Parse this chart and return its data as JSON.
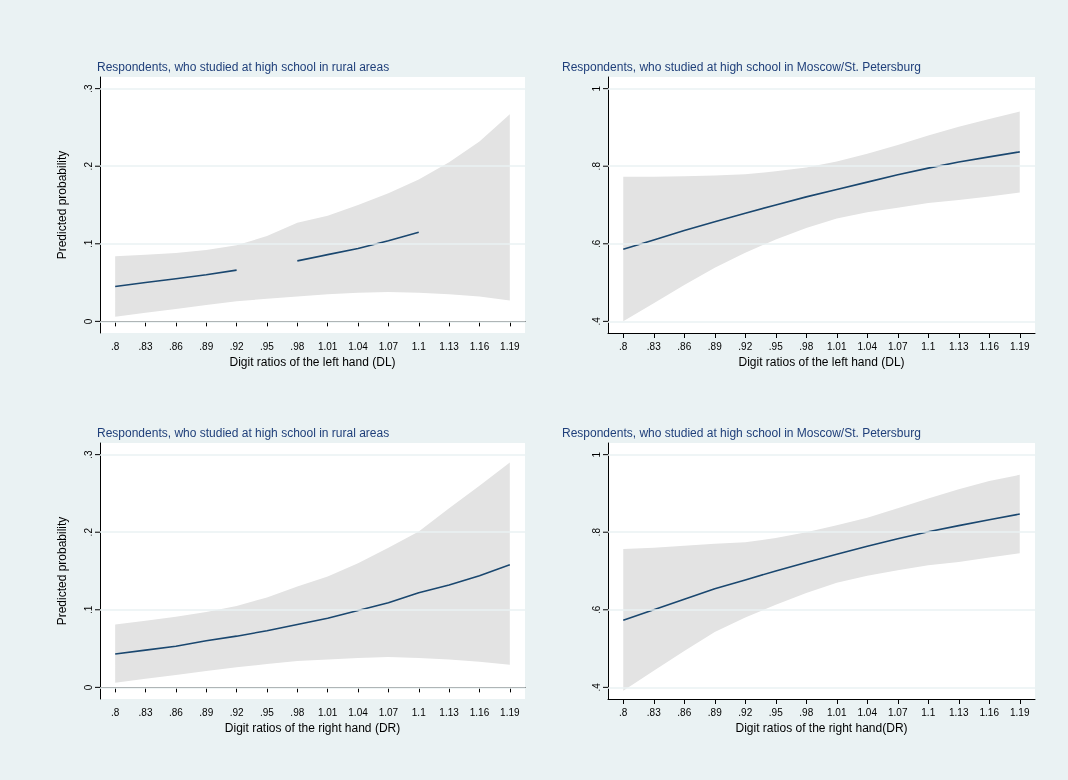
{
  "chart_data": [
    {
      "type": "line",
      "title": "Respondents, who studied at high school in rural areas",
      "xlabel": "Digit ratios of the left hand (DL)",
      "ylabel": "Predicted probability",
      "grid": "y",
      "categories": [
        ".8",
        ".83",
        ".86",
        ".89",
        ".92",
        ".95",
        ".98",
        "1.01",
        "1.04",
        "1.07",
        "1.1",
        "1.13",
        "1.16",
        "1.19"
      ],
      "ylim": [
        -0.015,
        0.315
      ],
      "yticks": [
        {
          "value": 0,
          "label": "0"
        },
        {
          "value": 0.1,
          "label": ".1"
        },
        {
          "value": 0.2,
          "label": ".2"
        },
        {
          "value": 0.3,
          "label": ".3"
        }
      ],
      "series": [
        {
          "color": "#1a476f",
          "values": [
            0.045,
            0.05,
            0.055,
            0.06,
            0.066,
            null,
            0.078,
            0.086,
            0.094,
            0.104,
            0.115,
            null,
            null,
            null
          ],
          "lower": [
            0.006,
            0.011,
            0.016,
            0.021,
            0.026,
            0.029,
            0.032,
            0.035,
            0.037,
            0.038,
            0.037,
            0.035,
            0.032,
            0.027
          ],
          "upper": [
            0.084,
            0.086,
            0.088,
            0.092,
            0.098,
            0.11,
            0.127,
            0.136,
            0.15,
            0.165,
            0.183,
            0.205,
            0.232,
            0.267
          ]
        }
      ]
    },
    {
      "type": "line",
      "title": "Respondents, who studied at high school in Moscow/St. Petersburg",
      "xlabel": "Digit ratios of the left hand (DL)",
      "grid": "y",
      "categories": [
        ".8",
        ".83",
        ".86",
        ".89",
        ".92",
        ".95",
        ".98",
        "1.01",
        "1.04",
        "1.07",
        "1.1",
        "1.13",
        "1.16",
        "1.19"
      ],
      "ylim": [
        0.37,
        1.03
      ],
      "yticks": [
        {
          "value": 0.4,
          "label": ".4"
        },
        {
          "value": 0.6,
          "label": ".6"
        },
        {
          "value": 0.8,
          "label": ".8"
        },
        1
      ],
      "series": [
        {
          "color": "#1a476f",
          "values": [
            0.586,
            0.61,
            0.634,
            0.657,
            0.679,
            0.7,
            0.721,
            0.74,
            0.759,
            0.778,
            0.795,
            0.811,
            0.824,
            0.837
          ],
          "lower": [
            0.4,
            0.447,
            0.494,
            0.538,
            0.577,
            0.611,
            0.641,
            0.665,
            0.681,
            0.693,
            0.705,
            0.713,
            0.722,
            0.732
          ],
          "upper": [
            0.773,
            0.773,
            0.774,
            0.776,
            0.779,
            0.787,
            0.797,
            0.812,
            0.832,
            0.855,
            0.879,
            0.902,
            0.922,
            0.941
          ]
        }
      ]
    },
    {
      "type": "line",
      "title": "Respondents, who studied at high school in rural areas",
      "xlabel": "Digit ratios of the right hand (DR)",
      "ylabel": "Predicted probability",
      "grid": "y",
      "categories": [
        ".8",
        ".83",
        ".86",
        ".89",
        ".92",
        ".95",
        ".98",
        "1.01",
        "1.04",
        "1.07",
        "1.1",
        "1.13",
        "1.16",
        "1.19"
      ],
      "ylim": [
        -0.015,
        0.315
      ],
      "yticks": [
        {
          "value": 0,
          "label": "0"
        },
        {
          "value": 0.1,
          "label": ".1"
        },
        {
          "value": 0.2,
          "label": ".2"
        },
        {
          "value": 0.3,
          "label": ".3"
        }
      ],
      "series": [
        {
          "color": "#1a476f",
          "values": [
            0.043,
            0.048,
            0.053,
            0.06,
            0.066,
            0.073,
            0.081,
            0.089,
            0.099,
            0.109,
            0.122,
            0.132,
            0.144,
            0.158
          ],
          "lower": [
            0.006,
            0.011,
            0.016,
            0.021,
            0.026,
            0.03,
            0.034,
            0.036,
            0.038,
            0.039,
            0.038,
            0.036,
            0.033,
            0.029
          ],
          "upper": [
            0.081,
            0.086,
            0.091,
            0.097,
            0.105,
            0.116,
            0.13,
            0.143,
            0.16,
            0.18,
            0.201,
            0.231,
            0.26,
            0.29
          ]
        }
      ]
    },
    {
      "type": "line",
      "title": "Respondents, who studied at high school in Moscow/St. Petersburg",
      "xlabel": "Digit ratios of the right hand(DR)",
      "grid": "y",
      "categories": [
        ".8",
        ".83",
        ".86",
        ".89",
        ".92",
        ".95",
        ".98",
        "1.01",
        "1.04",
        "1.07",
        "1.1",
        "1.13",
        "1.16",
        "1.19"
      ],
      "ylim": [
        0.37,
        1.03
      ],
      "yticks": [
        {
          "value": 0.4,
          "label": ".4"
        },
        {
          "value": 0.6,
          "label": ".6"
        },
        {
          "value": 0.8,
          "label": ".8"
        },
        1
      ],
      "series": [
        {
          "color": "#1a476f",
          "values": [
            0.573,
            0.6,
            0.627,
            0.654,
            0.677,
            0.7,
            0.722,
            0.743,
            0.764,
            0.783,
            0.801,
            0.817,
            0.832,
            0.847
          ],
          "lower": [
            0.391,
            0.443,
            0.494,
            0.543,
            0.58,
            0.613,
            0.643,
            0.67,
            0.688,
            0.702,
            0.715,
            0.723,
            0.735,
            0.746
          ],
          "upper": [
            0.757,
            0.76,
            0.765,
            0.77,
            0.774,
            0.785,
            0.8,
            0.818,
            0.837,
            0.862,
            0.887,
            0.911,
            0.932,
            0.948
          ]
        }
      ]
    }
  ]
}
